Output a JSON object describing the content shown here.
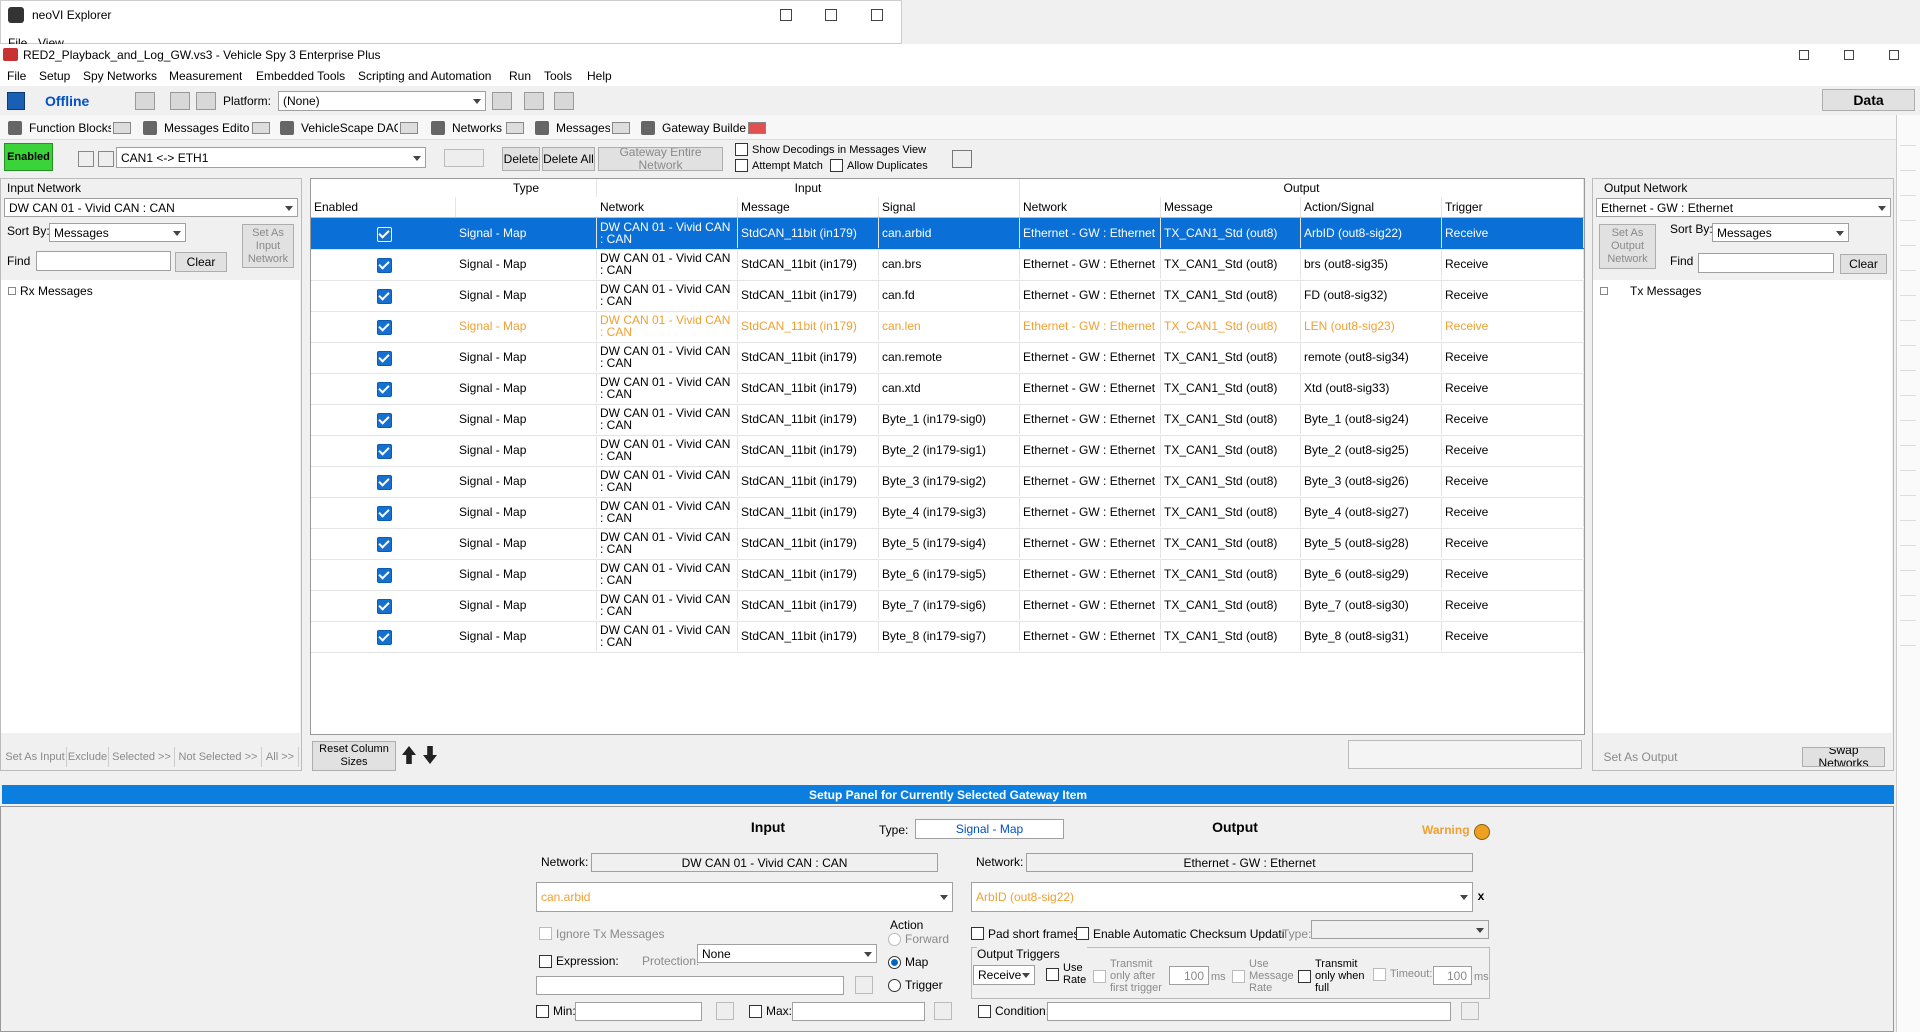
{
  "explorer": {
    "title": "neoVI Explorer",
    "menu": [
      "File",
      "View"
    ]
  },
  "app": {
    "title": "RED2_Playback_and_Log_GW.vs3 - Vehicle Spy 3 Enterprise Plus",
    "menu": [
      "File",
      "Setup",
      "Spy Networks",
      "Measurement",
      "Embedded Tools",
      "Scripting and Automation",
      "Run",
      "Tools",
      "Help"
    ],
    "toolbar": {
      "status": "Offline",
      "platform_label": "Platform:",
      "platform": "(None)",
      "data": "Data"
    },
    "tabs": [
      "Function Blocks",
      "Messages Editor",
      "VehicleScape DAQ",
      "Networks",
      "Messages",
      "Gateway Builder"
    ]
  },
  "gateway": {
    "enabled": "Enabled",
    "name": "CAN1 <-> ETH1",
    "delete": "Delete",
    "delete_all": "Delete All",
    "entire": "Gateway Entire Network",
    "show_decodings": "Show Decodings in Messages View",
    "attempt_match": "Attempt Match",
    "allow_duplicates": "Allow Duplicates"
  },
  "input_panel": {
    "label": "Input Network",
    "network": "DW CAN 01 - Vivid CAN : CAN",
    "sort_label": "Sort By:",
    "sort": "Messages",
    "set_as": "Set As Input Network",
    "find": "Find",
    "clear": "Clear",
    "tree": "Rx Messages",
    "footer": [
      "Set As Input",
      "Exclude",
      "Selected >>",
      "Not Selected >>",
      "All >>"
    ]
  },
  "output_panel": {
    "label": "Output Network",
    "network": "Ethernet - GW : Ethernet",
    "sort_label": "Sort By:",
    "sort": "Messages",
    "set_as": "Set As Output Network",
    "find": "Find",
    "clear": "Clear",
    "tree": "Tx Messages",
    "set_output": "Set As Output",
    "swap": "Swap Networks"
  },
  "table": {
    "groups": [
      "Type",
      "Input",
      "Output"
    ],
    "columns": [
      "Enabled",
      "Network",
      "Message",
      "Signal",
      "Network",
      "Message",
      "Action/Signal",
      "Trigger"
    ],
    "rows": [
      [
        "Signal - Map",
        "DW CAN 01 - Vivid CAN : CAN",
        "StdCAN_11bit (in179)",
        "can.arbid",
        "Ethernet - GW : Ethernet",
        "TX_CAN1_Std (out8)",
        "ArbID (out8-sig22)",
        "Receive"
      ],
      [
        "Signal - Map",
        "DW CAN 01 - Vivid CAN : CAN",
        "StdCAN_11bit (in179)",
        "can.brs",
        "Ethernet - GW : Ethernet",
        "TX_CAN1_Std (out8)",
        "brs (out8-sig35)",
        "Receive"
      ],
      [
        "Signal - Map",
        "DW CAN 01 - Vivid CAN : CAN",
        "StdCAN_11bit (in179)",
        "can.fd",
        "Ethernet - GW : Ethernet",
        "TX_CAN1_Std (out8)",
        "FD (out8-sig32)",
        "Receive"
      ],
      [
        "Signal - Map",
        "DW CAN 01 - Vivid CAN : CAN",
        "StdCAN_11bit (in179)",
        "can.len",
        "Ethernet - GW : Ethernet",
        "TX_CAN1_Std (out8)",
        "LEN (out8-sig23)",
        "Receive"
      ],
      [
        "Signal - Map",
        "DW CAN 01 - Vivid CAN : CAN",
        "StdCAN_11bit (in179)",
        "can.remote",
        "Ethernet - GW : Ethernet",
        "TX_CAN1_Std (out8)",
        "remote (out8-sig34)",
        "Receive"
      ],
      [
        "Signal - Map",
        "DW CAN 01 - Vivid CAN : CAN",
        "StdCAN_11bit (in179)",
        "can.xtd",
        "Ethernet - GW : Ethernet",
        "TX_CAN1_Std (out8)",
        "Xtd (out8-sig33)",
        "Receive"
      ],
      [
        "Signal - Map",
        "DW CAN 01 - Vivid CAN : CAN",
        "StdCAN_11bit (in179)",
        "Byte_1 (in179-sig0)",
        "Ethernet - GW : Ethernet",
        "TX_CAN1_Std (out8)",
        "Byte_1 (out8-sig24)",
        "Receive"
      ],
      [
        "Signal - Map",
        "DW CAN 01 - Vivid CAN : CAN",
        "StdCAN_11bit (in179)",
        "Byte_2 (in179-sig1)",
        "Ethernet - GW : Ethernet",
        "TX_CAN1_Std (out8)",
        "Byte_2 (out8-sig25)",
        "Receive"
      ],
      [
        "Signal - Map",
        "DW CAN 01 - Vivid CAN : CAN",
        "StdCAN_11bit (in179)",
        "Byte_3 (in179-sig2)",
        "Ethernet - GW : Ethernet",
        "TX_CAN1_Std (out8)",
        "Byte_3 (out8-sig26)",
        "Receive"
      ],
      [
        "Signal - Map",
        "DW CAN 01 - Vivid CAN : CAN",
        "StdCAN_11bit (in179)",
        "Byte_4 (in179-sig3)",
        "Ethernet - GW : Ethernet",
        "TX_CAN1_Std (out8)",
        "Byte_4 (out8-sig27)",
        "Receive"
      ],
      [
        "Signal - Map",
        "DW CAN 01 - Vivid CAN : CAN",
        "StdCAN_11bit (in179)",
        "Byte_5 (in179-sig4)",
        "Ethernet - GW : Ethernet",
        "TX_CAN1_Std (out8)",
        "Byte_5 (out8-sig28)",
        "Receive"
      ],
      [
        "Signal - Map",
        "DW CAN 01 - Vivid CAN : CAN",
        "StdCAN_11bit (in179)",
        "Byte_6 (in179-sig5)",
        "Ethernet - GW : Ethernet",
        "TX_CAN1_Std (out8)",
        "Byte_6 (out8-sig29)",
        "Receive"
      ],
      [
        "Signal - Map",
        "DW CAN 01 - Vivid CAN : CAN",
        "StdCAN_11bit (in179)",
        "Byte_7 (in179-sig6)",
        "Ethernet - GW : Ethernet",
        "TX_CAN1_Std (out8)",
        "Byte_7 (out8-sig30)",
        "Receive"
      ],
      [
        "Signal - Map",
        "DW CAN 01 - Vivid CAN : CAN",
        "StdCAN_11bit (in179)",
        "Byte_8 (in179-sig7)",
        "Ethernet - GW : Ethernet",
        "TX_CAN1_Std (out8)",
        "Byte_8 (out8-sig31)",
        "Receive"
      ]
    ],
    "reset": "Reset Column Sizes"
  },
  "setup": {
    "title": "Setup Panel for Currently Selected Gateway Item",
    "input": "Input",
    "type_label": "Type:",
    "type": "Signal - Map",
    "output": "Output",
    "warning": "Warning",
    "in_network_label": "Network:",
    "in_network": "DW CAN 01 - Vivid CAN : CAN",
    "out_network_label": "Network:",
    "out_network": "Ethernet - GW : Ethernet",
    "in_signal": "can.arbid",
    "out_signal": "ArbID (out8-sig22)",
    "clear_x": "x",
    "ignore_tx": "Ignore Tx Messages",
    "expression": "Expression:",
    "protection_label": "Protection:",
    "protection": "None",
    "action": "Action",
    "forward": "Forward",
    "map": "Map",
    "trigger": "Trigger",
    "min": "Min:",
    "max": "Max:",
    "pad": "Pad short frames",
    "checksum": "Enable Automatic Checksum Updating",
    "out_type_label": "Type:",
    "output_triggers": "Output Triggers",
    "receive": "Receive",
    "use_rate": "Use Rate",
    "after_first": "Transmit only after first trigger",
    "rate": "100",
    "rate_unit": "ms",
    "use_msg_rate": "Use Message Rate",
    "when_full": "Transmit only when full",
    "timeout_label": "Timeout:",
    "timeout": "100",
    "timeout_unit": "ms",
    "condition": "Condition:"
  }
}
